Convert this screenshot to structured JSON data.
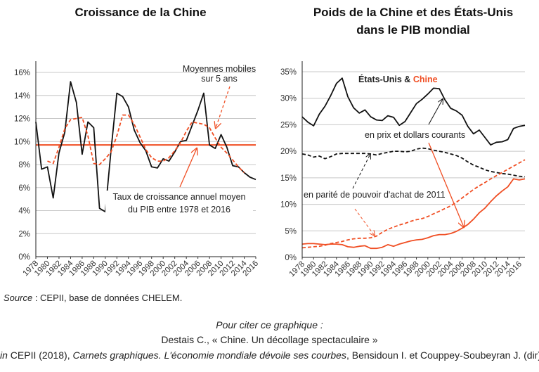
{
  "chart_data": [
    {
      "type": "line",
      "title": "Croissance de la Chine",
      "x": [
        1978,
        1979,
        1980,
        1981,
        1982,
        1983,
        1984,
        1985,
        1986,
        1987,
        1988,
        1989,
        1990,
        1991,
        1992,
        1993,
        1994,
        1995,
        1996,
        1997,
        1998,
        1999,
        2000,
        2001,
        2002,
        2003,
        2004,
        2005,
        2006,
        2007,
        2008,
        2009,
        2010,
        2011,
        2012,
        2013,
        2014,
        2015,
        2016
      ],
      "x_tick_labels": [
        "1978",
        "1980",
        "1982",
        "1984",
        "1986",
        "1988",
        "1990",
        "1992",
        "1994",
        "1996",
        "1998",
        "2000",
        "2002",
        "2004",
        "2006",
        "2008",
        "2010",
        "2012",
        "2014",
        "2016"
      ],
      "y_tick_labels": [
        "0%",
        "2%",
        "4%",
        "6%",
        "8%",
        "10%",
        "12%",
        "14%",
        "16%"
      ],
      "ylim": [
        0,
        16
      ],
      "grid": true,
      "series": [
        {
          "name": "Croissance annuelle du PIB",
          "color": "#111111",
          "style": "solid",
          "values": [
            11.7,
            7.6,
            7.8,
            5.1,
            9.0,
            10.8,
            15.2,
            13.4,
            8.9,
            11.7,
            11.2,
            4.2,
            3.9,
            9.3,
            14.2,
            13.9,
            13.0,
            11.0,
            9.9,
            9.2,
            7.8,
            7.7,
            8.5,
            8.3,
            9.1,
            10.0,
            10.1,
            11.4,
            12.7,
            14.2,
            9.7,
            9.4,
            10.6,
            9.5,
            7.9,
            7.8,
            7.3,
            6.9,
            6.7
          ]
        },
        {
          "name": "Moyennes mobiles sur 5 ans",
          "color": "#f04e23",
          "style": "dashed",
          "values": [
            null,
            null,
            8.3,
            8.1,
            9.5,
            11.1,
            11.9,
            12.0,
            12.1,
            10.5,
            8.1,
            8.0,
            8.5,
            9.1,
            10.5,
            12.3,
            12.3,
            11.5,
            10.4,
            9.3,
            8.6,
            8.3,
            8.3,
            8.6,
            9.2,
            9.9,
            10.9,
            11.7,
            11.6,
            11.5,
            11.2,
            10.3,
            9.5,
            9.0,
            8.4,
            7.8,
            7.3,
            null,
            null
          ]
        }
      ],
      "reference_line": {
        "value": 9.7,
        "color": "#f04e23"
      },
      "annotations": {
        "moving_avg_line1": "Moyennes mobiles",
        "moving_avg_line2": "sur 5 ans",
        "mean_line1": "Taux de croissance annuel moyen",
        "mean_line2": "du PIB entre 1978 et 2016"
      }
    },
    {
      "type": "line",
      "title_line1": "Poids de la Chine et des États-Unis",
      "title_line2": "dans le PIB mondial",
      "x": [
        1978,
        1979,
        1980,
        1981,
        1982,
        1983,
        1984,
        1985,
        1986,
        1987,
        1988,
        1989,
        1990,
        1991,
        1992,
        1993,
        1994,
        1995,
        1996,
        1997,
        1998,
        1999,
        2000,
        2001,
        2002,
        2003,
        2004,
        2005,
        2006,
        2007,
        2008,
        2009,
        2010,
        2011,
        2012,
        2013,
        2014,
        2015,
        2016,
        2017
      ],
      "x_tick_labels": [
        "1978",
        "1980",
        "1982",
        "1984",
        "1986",
        "1988",
        "1990",
        "1992",
        "1994",
        "1996",
        "1998",
        "2000",
        "2002",
        "2004",
        "2006",
        "2008",
        "2010",
        "2012",
        "2014",
        "2016"
      ],
      "y_tick_labels": [
        "0%",
        "5%",
        "10%",
        "15%",
        "20%",
        "25%",
        "30%",
        "35%"
      ],
      "ylim": [
        0,
        35
      ],
      "grid": true,
      "series": [
        {
          "name": "États-Unis, prix et dollars courants",
          "color": "#111111",
          "style": "solid",
          "values": [
            26.5,
            25.5,
            24.8,
            27.0,
            28.5,
            30.5,
            32.8,
            33.8,
            30.3,
            28.2,
            27.2,
            27.8,
            26.5,
            25.9,
            25.8,
            26.7,
            26.4,
            24.9,
            25.6,
            27.3,
            29.0,
            29.8,
            30.8,
            31.9,
            31.8,
            29.7,
            28.1,
            27.6,
            26.8,
            24.7,
            23.3,
            24.0,
            22.6,
            21.2,
            21.7,
            21.8,
            22.2,
            24.3,
            24.7,
            24.9
          ]
        },
        {
          "name": "États-Unis, parité de pouvoir d'achat de 2011",
          "color": "#111111",
          "style": "dashed",
          "values": [
            19.5,
            19.3,
            18.9,
            19.1,
            18.6,
            19.0,
            19.5,
            19.6,
            19.6,
            19.6,
            19.6,
            19.6,
            19.5,
            19.3,
            19.6,
            19.8,
            20.0,
            20.0,
            19.9,
            20.0,
            20.4,
            20.6,
            20.5,
            20.2,
            20.0,
            19.8,
            19.5,
            19.2,
            18.7,
            18.0,
            17.4,
            17.0,
            16.5,
            16.2,
            16.0,
            15.8,
            15.7,
            15.5,
            15.3,
            15.2
          ]
        },
        {
          "name": "Chine, prix et dollars courants",
          "color": "#f04e23",
          "style": "solid",
          "values": [
            2.5,
            2.6,
            2.6,
            2.5,
            2.4,
            2.5,
            2.5,
            2.4,
            2.0,
            1.9,
            2.1,
            2.2,
            1.7,
            1.7,
            1.9,
            2.4,
            2.1,
            2.5,
            2.8,
            3.1,
            3.3,
            3.4,
            3.7,
            4.1,
            4.3,
            4.3,
            4.5,
            4.9,
            5.5,
            6.2,
            7.2,
            8.4,
            9.3,
            10.5,
            11.6,
            12.5,
            13.3,
            14.8,
            14.6,
            14.8
          ]
        },
        {
          "name": "Chine, parité de pouvoir d'achat de 2011",
          "color": "#f04e23",
          "style": "dashed",
          "values": [
            1.8,
            1.9,
            2.0,
            2.1,
            2.3,
            2.6,
            2.8,
            3.0,
            3.3,
            3.5,
            3.6,
            3.6,
            3.7,
            4.0,
            4.7,
            5.3,
            5.7,
            6.1,
            6.4,
            6.8,
            7.1,
            7.3,
            7.7,
            8.2,
            8.7,
            9.2,
            9.7,
            10.4,
            11.2,
            12.0,
            12.8,
            13.5,
            14.1,
            14.8,
            15.4,
            16.0,
            16.6,
            17.2,
            17.8,
            18.4
          ]
        }
      ],
      "legend": {
        "us": "États-Unis",
        "amp": " & ",
        "china": "Chine",
        "us_color": "#111111",
        "china_color": "#f04e23"
      },
      "annotations": {
        "current": "en prix et dollars courants",
        "ppp": "en parité de pouvoir d'achat de 2011"
      }
    }
  ],
  "footer": {
    "source_label": "Source",
    "source_text": " : CEPII, base de données CHELEM.",
    "cite_heading": "Pour citer ce graphique :",
    "cite_author": "Destais C., « Chine. Un décollage spectaculaire »",
    "cite_in": "in",
    "cite_pub": " CEPII (2018), ",
    "cite_book": "Carnets graphiques. L'économie mondiale dévoile ses courbes",
    "cite_editors": ", Bensidoun I. et Couppey-Soubeyran J. (dir)"
  }
}
